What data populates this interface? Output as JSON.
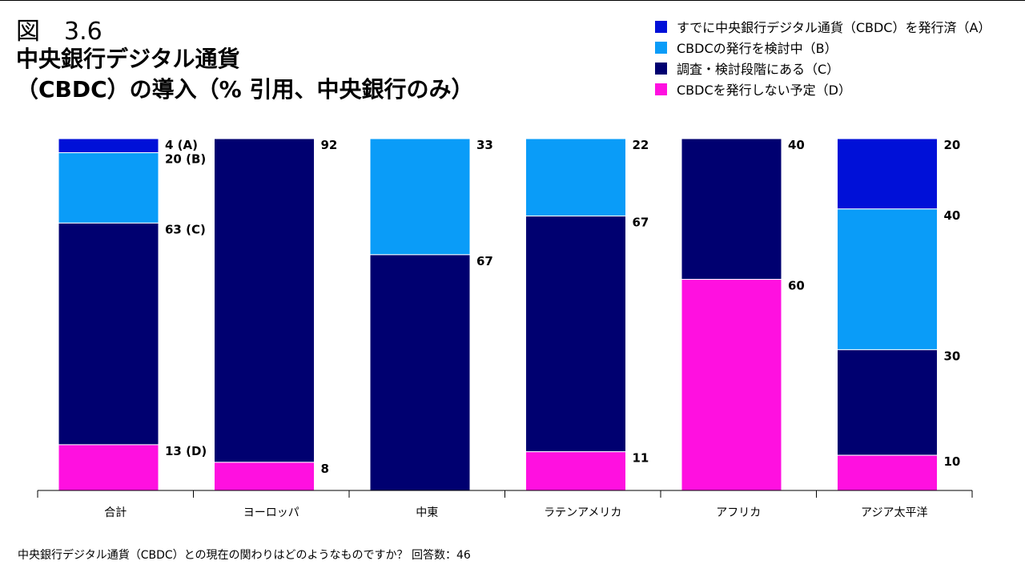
{
  "figure_label": "図　3.6",
  "title_line1": "中央銀行デジタル通貨",
  "title_line2": "（CBDC）の導入（% 引用、中央銀行のみ）",
  "legend": [
    {
      "label": "すでに中央銀行デジタル通貨（CBDC）を発行済（A）",
      "color": "#0010d8"
    },
    {
      "label": "CBDCの発行を検討中（B）",
      "color": "#0a9cf8"
    },
    {
      "label": "調査・検討段階にある（C）",
      "color": "#000070"
    },
    {
      "label": "CBDCを発行しない予定（D）",
      "color": "#ff10e0"
    }
  ],
  "footnote": "中央銀行デジタル通貨（CBDC）との現在の関わりはどのようなものですか？ 回答数：46",
  "chart_data": {
    "type": "bar",
    "stacked": true,
    "categories": [
      "合計",
      "ヨーロッパ",
      "中東",
      "ラテンアメリカ",
      "アフリカ",
      "アジア太平洋"
    ],
    "ylim": [
      0,
      100
    ],
    "series": [
      {
        "name": "すでに中央銀行デジタル通貨（CBDC）を発行済（A）",
        "key": "A",
        "color": "#0010d8",
        "values": [
          4,
          0,
          0,
          0,
          0,
          20
        ]
      },
      {
        "name": "CBDCの発行を検討中（B）",
        "key": "B",
        "color": "#0a9cf8",
        "values": [
          20,
          0,
          33,
          22,
          0,
          40
        ]
      },
      {
        "name": "調査・検討段階にある（C）",
        "key": "C",
        "color": "#000070",
        "values": [
          63,
          92,
          67,
          67,
          40,
          30
        ]
      },
      {
        "name": "CBDCを発行しない予定（D）",
        "key": "D",
        "color": "#ff10e0",
        "values": [
          13,
          8,
          0,
          11,
          60,
          10
        ]
      }
    ],
    "data_labels": [
      [
        "4 (A)",
        "20 (B)",
        "63 (C)",
        "13 (D)"
      ],
      [
        "",
        "",
        "92",
        "8"
      ],
      [
        "",
        "33",
        "67",
        ""
      ],
      [
        "",
        "22",
        "67",
        "11"
      ],
      [
        "",
        "",
        "40",
        "60"
      ],
      [
        "20",
        "40",
        "30",
        "10"
      ]
    ]
  }
}
